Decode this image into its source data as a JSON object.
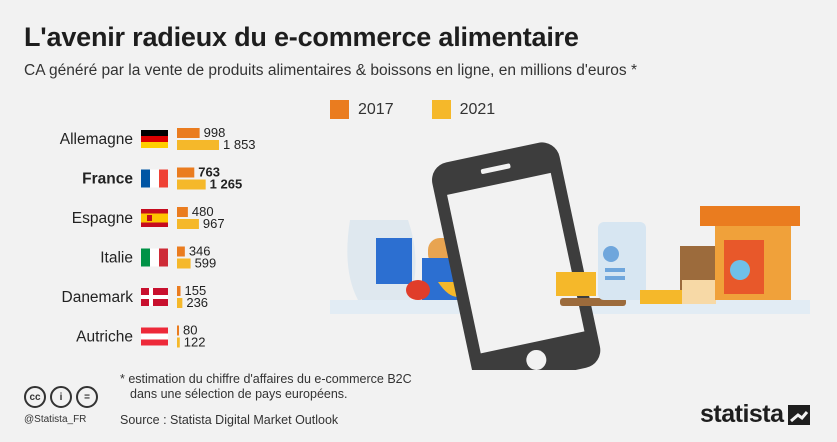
{
  "header": {
    "title": "L'avenir radieux du e-commerce alimentaire",
    "subtitle": "CA généré par la vente de produits alimentaires & boissons en ligne, en millions d'euros *"
  },
  "legend": [
    {
      "label": "2017",
      "color": "#ea7c1f"
    },
    {
      "label": "2021",
      "color": "#f5b82a"
    }
  ],
  "chart_data": {
    "type": "bar",
    "orientation": "horizontal",
    "title": "L'avenir radieux du e-commerce alimentaire",
    "subtitle": "CA généré par la vente de produits alimentaires & boissons en ligne, en millions d'euros *",
    "categories": [
      "Allemagne",
      "France",
      "Espagne",
      "Italie",
      "Danemark",
      "Autriche"
    ],
    "series": [
      {
        "name": "2017",
        "color": "#ea7c1f",
        "values": [
          998,
          763,
          480,
          346,
          155,
          80
        ],
        "labels": [
          "998",
          "763",
          "480",
          "346",
          "155",
          "80"
        ]
      },
      {
        "name": "2021",
        "color": "#f5b82a",
        "values": [
          1853,
          1265,
          967,
          599,
          236,
          122
        ],
        "labels": [
          "1 853",
          "1 265",
          "967",
          "599",
          "236",
          "122"
        ]
      }
    ],
    "highlight_category": "France",
    "xlim": [
      0,
      1853
    ],
    "grid": false,
    "legend_position": "top"
  },
  "footer": {
    "footnote_line1": "* estimation du chiffre d'affaires du e-commerce B2C",
    "footnote_line2": "dans une sélection de pays européens.",
    "source": "Source : Statista Digital Market Outlook",
    "handle": "@Statista_FR",
    "cc_icons": [
      "cc",
      "i",
      "="
    ],
    "brand": "statista"
  },
  "colors": {
    "bar_2017": "#ea7c1f",
    "bar_2021": "#f5b82a",
    "phone": "#3d3d3d",
    "background": "#f2f2f2"
  }
}
